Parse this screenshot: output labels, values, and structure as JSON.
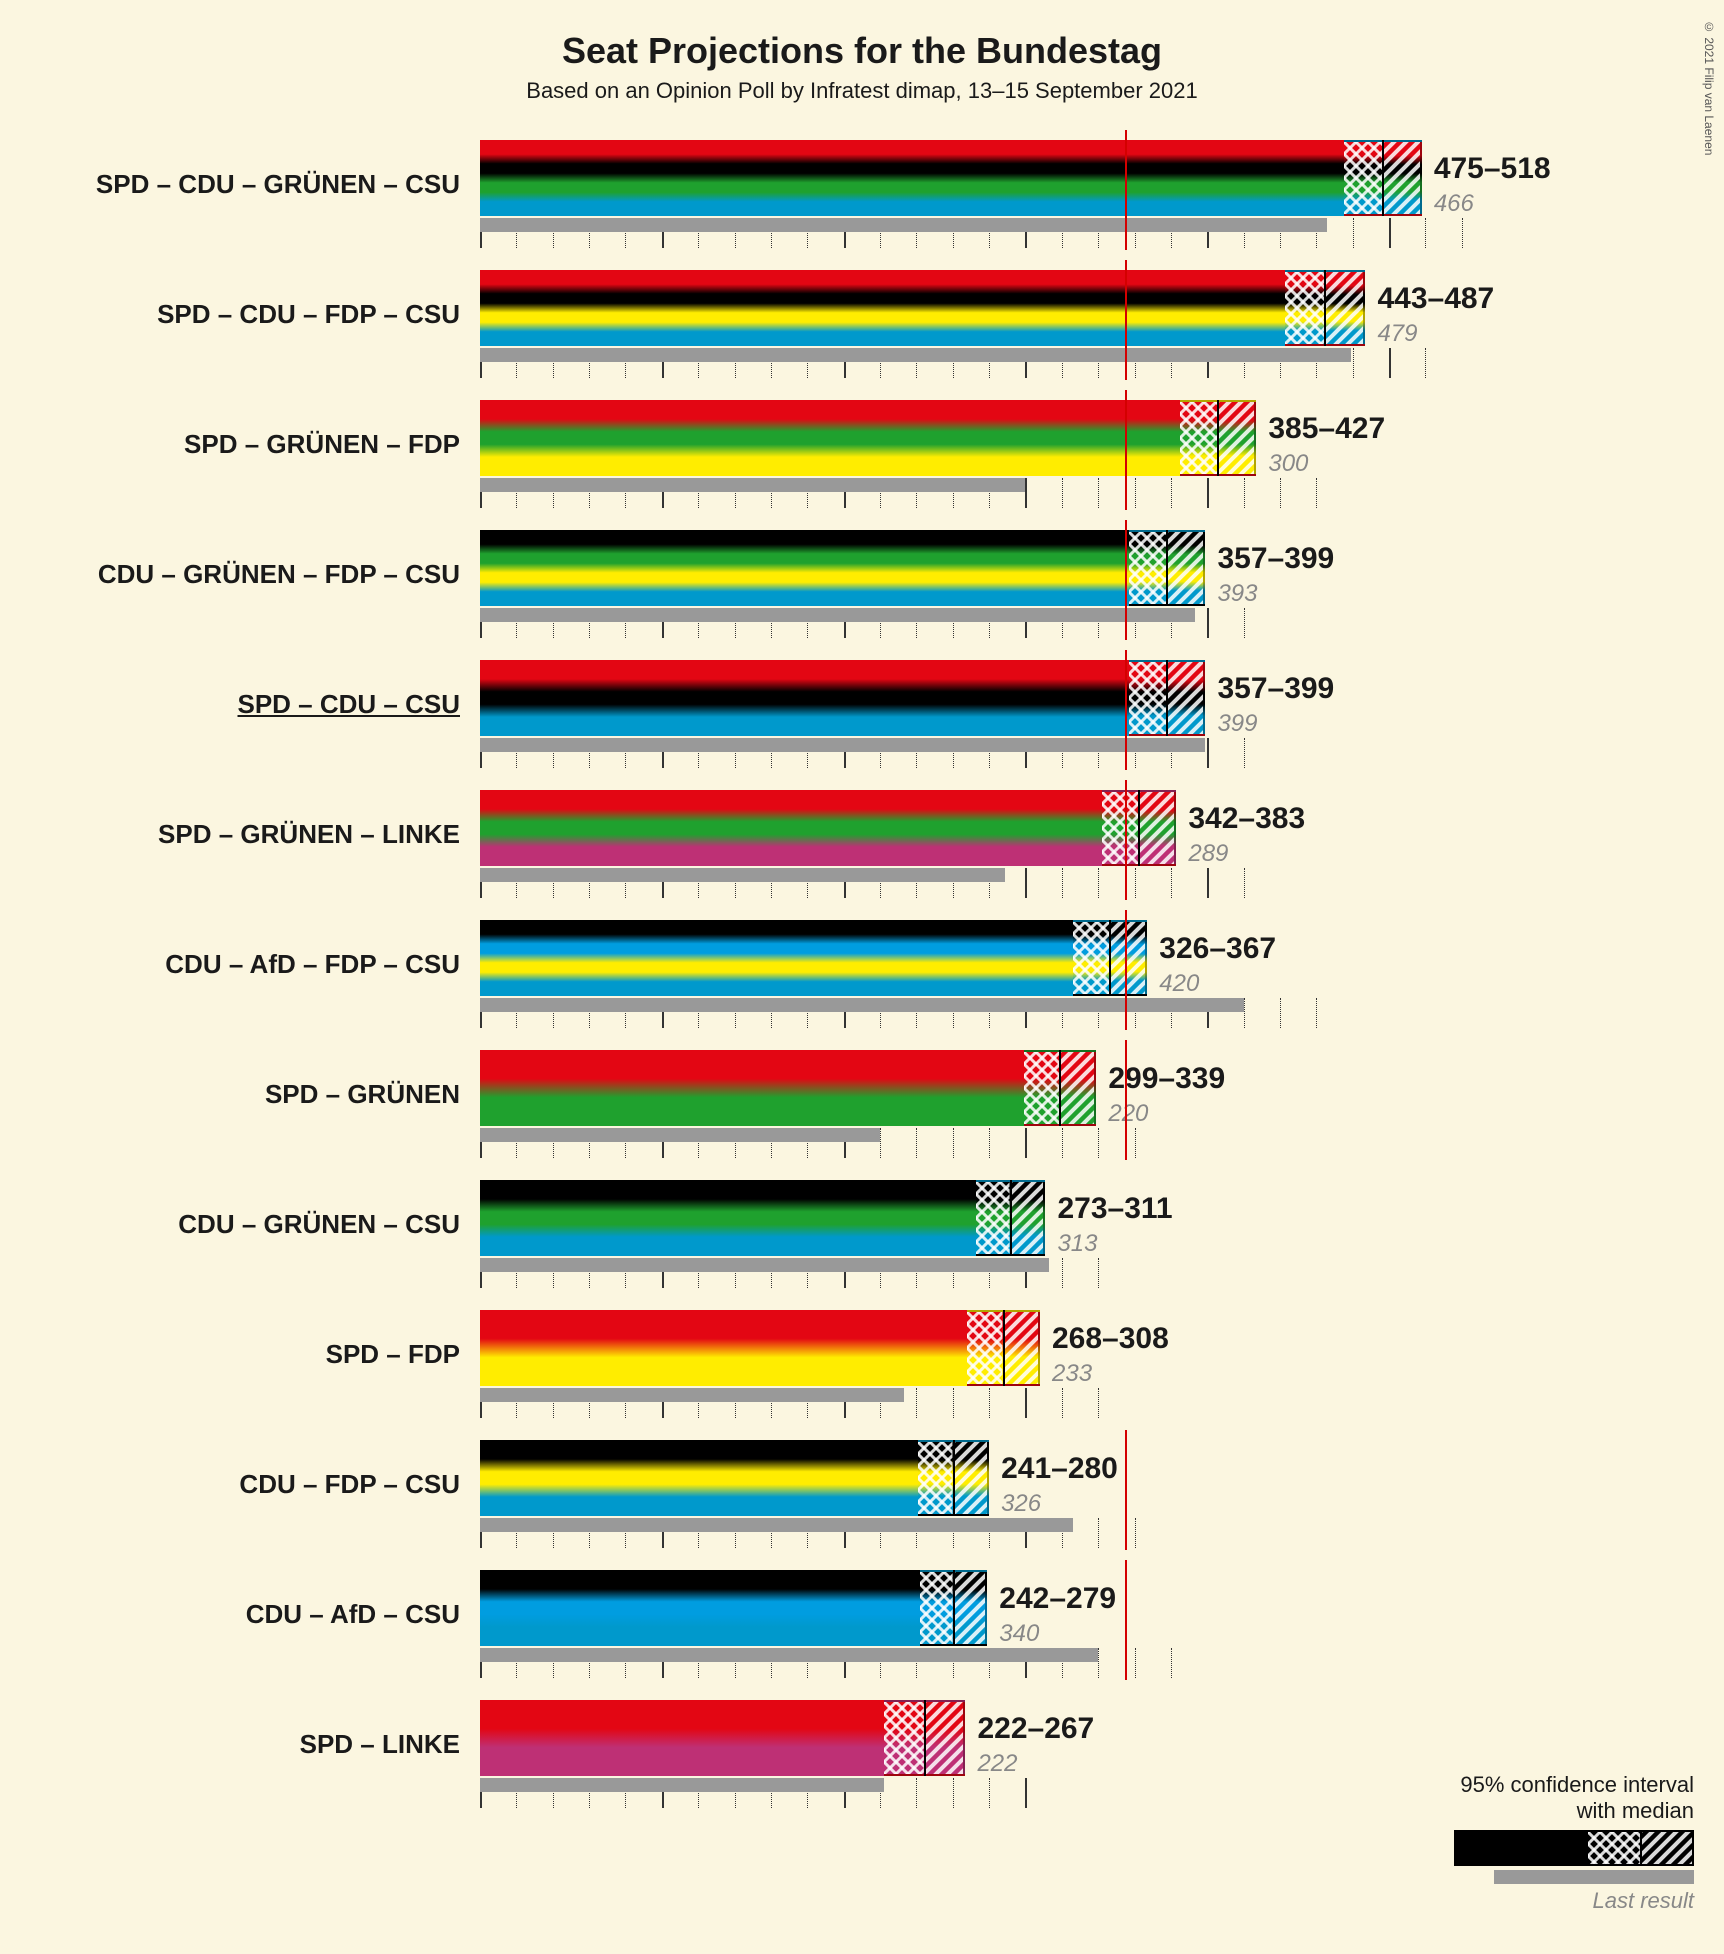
{
  "title": "Seat Projections for the Bundestag",
  "subtitle": "Based on an Opinion Poll by Infratest dimap, 13–15 September 2021",
  "copyright": "© 2021 Filip van Laenen",
  "title_fontsize": 36,
  "subtitle_fontsize": 22,
  "label_fontsize": 26,
  "range_fontsize": 30,
  "last_fontsize": 24,
  "background_color": "#fbf6e0",
  "threshold_color": "#d40000",
  "last_result_color": "#999999",
  "grid_color": "#333333",
  "party_colors": {
    "SPD": "#e30613",
    "CDU": "#000000",
    "CSU": "#0099cc",
    "GRUENEN": "#1fa12e",
    "FDP": "#ffed00",
    "AfD": "#009de0",
    "LINKE": "#be3075"
  },
  "xaxis": {
    "min": 0,
    "max": 550,
    "major_step": 100,
    "minor_step": 20
  },
  "threshold_value": 355,
  "coalitions": [
    {
      "label": "SPD – CDU – GRÜNEN – CSU",
      "parties": [
        "SPD",
        "CDU",
        "GRUENEN",
        "CSU"
      ],
      "low": 475,
      "high": 518,
      "last": 466,
      "underlined": false
    },
    {
      "label": "SPD – CDU – FDP – CSU",
      "parties": [
        "SPD",
        "CDU",
        "FDP",
        "CSU"
      ],
      "low": 443,
      "high": 487,
      "last": 479,
      "underlined": false
    },
    {
      "label": "SPD – GRÜNEN – FDP",
      "parties": [
        "SPD",
        "GRUENEN",
        "FDP"
      ],
      "low": 385,
      "high": 427,
      "last": 300,
      "underlined": false
    },
    {
      "label": "CDU – GRÜNEN – FDP – CSU",
      "parties": [
        "CDU",
        "GRUENEN",
        "FDP",
        "CSU"
      ],
      "low": 357,
      "high": 399,
      "last": 393,
      "underlined": false
    },
    {
      "label": "SPD – CDU – CSU",
      "parties": [
        "SPD",
        "CDU",
        "CSU"
      ],
      "low": 357,
      "high": 399,
      "last": 399,
      "underlined": true
    },
    {
      "label": "SPD – GRÜNEN – LINKE",
      "parties": [
        "SPD",
        "GRUENEN",
        "LINKE"
      ],
      "low": 342,
      "high": 383,
      "last": 289,
      "underlined": false
    },
    {
      "label": "CDU – AfD – FDP – CSU",
      "parties": [
        "CDU",
        "AfD",
        "FDP",
        "CSU"
      ],
      "low": 326,
      "high": 367,
      "last": 420,
      "underlined": false
    },
    {
      "label": "SPD – GRÜNEN",
      "parties": [
        "SPD",
        "GRUENEN"
      ],
      "low": 299,
      "high": 339,
      "last": 220,
      "underlined": false
    },
    {
      "label": "CDU – GRÜNEN – CSU",
      "parties": [
        "CDU",
        "GRUENEN",
        "CSU"
      ],
      "low": 273,
      "high": 311,
      "last": 313,
      "underlined": false
    },
    {
      "label": "SPD – FDP",
      "parties": [
        "SPD",
        "FDP"
      ],
      "low": 268,
      "high": 308,
      "last": 233,
      "underlined": false
    },
    {
      "label": "CDU – FDP – CSU",
      "parties": [
        "CDU",
        "FDP",
        "CSU"
      ],
      "low": 241,
      "high": 280,
      "last": 326,
      "underlined": false
    },
    {
      "label": "CDU – AfD – CSU",
      "parties": [
        "CDU",
        "AfD",
        "CSU"
      ],
      "low": 242,
      "high": 279,
      "last": 340,
      "underlined": false
    },
    {
      "label": "SPD – LINKE",
      "parties": [
        "SPD",
        "LINKE"
      ],
      "low": 222,
      "high": 267,
      "last": 222,
      "underlined": false
    }
  ],
  "legend": {
    "ci_label": "95% confidence interval\nwith median",
    "last_label": "Last result"
  }
}
